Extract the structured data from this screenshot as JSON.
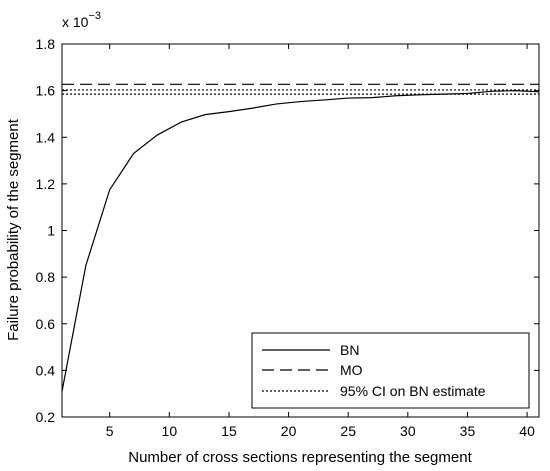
{
  "chart_data": {
    "type": "line",
    "title": "",
    "xlabel": "Number of cross sections representing the segment",
    "ylabel": "Failure probability of the segment",
    "y_multiplier_base": "x 10",
    "y_multiplier_exponent": "−3",
    "xlim": [
      1,
      41
    ],
    "ylim": [
      0.2,
      1.8
    ],
    "xticks": [
      5,
      10,
      15,
      20,
      25,
      30,
      35,
      40
    ],
    "xtick_labels": [
      "5",
      "10",
      "15",
      "20",
      "25",
      "30",
      "35",
      "40"
    ],
    "yticks": [
      0.2,
      0.4,
      0.6,
      0.8,
      1.0,
      1.2,
      1.4,
      1.6,
      1.8
    ],
    "ytick_labels": [
      "0.2",
      "0.4",
      "0.6",
      "0.8",
      "1",
      "1.2",
      "1.4",
      "1.6",
      "1.8"
    ],
    "grid": false,
    "legend_position": "bottom-right",
    "series": [
      {
        "name": "BN",
        "style": "solid",
        "x": [
          1,
          3,
          5,
          7,
          9,
          11,
          13,
          15,
          17,
          19,
          21,
          23,
          25,
          27,
          29,
          31,
          33,
          35,
          37,
          39,
          41
        ],
        "y": [
          0.31,
          0.85,
          1.175,
          1.33,
          1.41,
          1.465,
          1.497,
          1.51,
          1.525,
          1.543,
          1.553,
          1.56,
          1.568,
          1.57,
          1.578,
          1.582,
          1.585,
          1.588,
          1.597,
          1.6,
          1.595
        ]
      },
      {
        "name": "MO",
        "style": "dashed",
        "x": [
          1,
          41
        ],
        "y": [
          1.627,
          1.627
        ]
      },
      {
        "name": "95% CI on BN estimate",
        "style": "dotted",
        "x": [
          1,
          41
        ],
        "y": [
          1.603,
          1.603
        ]
      },
      {
        "name": "",
        "style": "dotted",
        "x": [
          1,
          41
        ],
        "y": [
          1.585,
          1.585
        ]
      }
    ],
    "colors": {
      "line": "#000000",
      "background": "#ffffff"
    }
  }
}
